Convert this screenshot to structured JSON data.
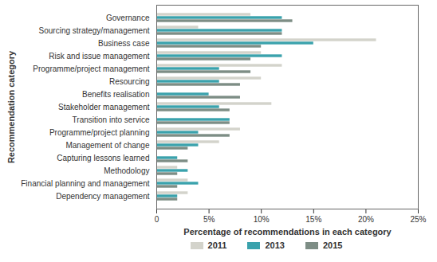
{
  "chart_data": {
    "type": "bar",
    "orientation": "horizontal",
    "x_label": "Percentage of recommendations in each category",
    "y_label": "Recommendation category",
    "categories": [
      "Governance",
      "Sourcing strategy/management",
      "Business case",
      "Risk and issue management",
      "Programme/project management",
      "Resourcing",
      "Benefits realisation",
      "Stakeholder management",
      "Transition into service",
      "Programme/project planning",
      "Management of change",
      "Capturing lessons learned",
      "Methodology",
      "Financial planning and management",
      "Dependency management"
    ],
    "series": [
      {
        "name": "2011",
        "color": "#d3d3cb",
        "values": [
          9,
          4,
          21,
          10,
          12,
          10,
          0,
          11,
          0,
          8,
          6,
          0,
          2,
          3,
          3
        ]
      },
      {
        "name": "2013",
        "color": "#3aa2ac",
        "values": [
          12,
          12,
          15,
          12,
          6,
          6,
          5,
          6,
          7,
          4,
          4,
          2,
          3,
          4,
          2
        ]
      },
      {
        "name": "2015",
        "color": "#7d8d85",
        "values": [
          13,
          12,
          10,
          9,
          9,
          8,
          8,
          7,
          7,
          7,
          3,
          3,
          2,
          2,
          2
        ]
      }
    ],
    "xlim": [
      0,
      25
    ],
    "xticks": [
      0,
      {
        "value": 5,
        "label": "5%"
      },
      {
        "value": 10,
        "label": "10%"
      },
      {
        "value": 15,
        "label": "15%"
      },
      {
        "value": 20,
        "label": "20%"
      },
      {
        "value": 25,
        "label": "25%"
      }
    ],
    "grid": false,
    "legend": "bottom"
  }
}
